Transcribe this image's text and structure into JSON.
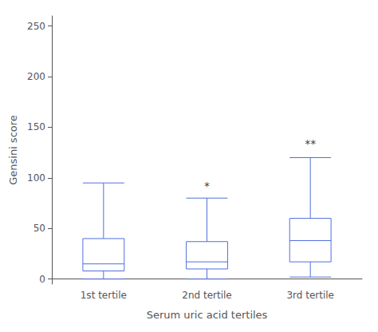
{
  "chart_data": {
    "type": "boxplot",
    "xlabel": "Serum uric acid tertiles",
    "ylabel": "Gensini score",
    "categories": [
      "1st tertile",
      "2nd tertile",
      "3rd tertile"
    ],
    "boxes": [
      {
        "whislo": 0,
        "q1": 8,
        "med": 15,
        "q3": 40,
        "whishi": 95
      },
      {
        "whislo": 0,
        "q1": 10,
        "med": 17,
        "q3": 37,
        "whishi": 80
      },
      {
        "whislo": 2,
        "q1": 17,
        "med": 38,
        "q3": 60,
        "whishi": 120
      }
    ],
    "annotations": [
      {
        "category": "2nd tertile",
        "y": 85,
        "text": "*"
      },
      {
        "category": "3rd tertile",
        "y": 127,
        "text": "**"
      }
    ],
    "ylim": [
      -5,
      260
    ],
    "yticks": [
      0,
      50,
      100,
      150,
      200,
      250
    ],
    "grid": false
  }
}
